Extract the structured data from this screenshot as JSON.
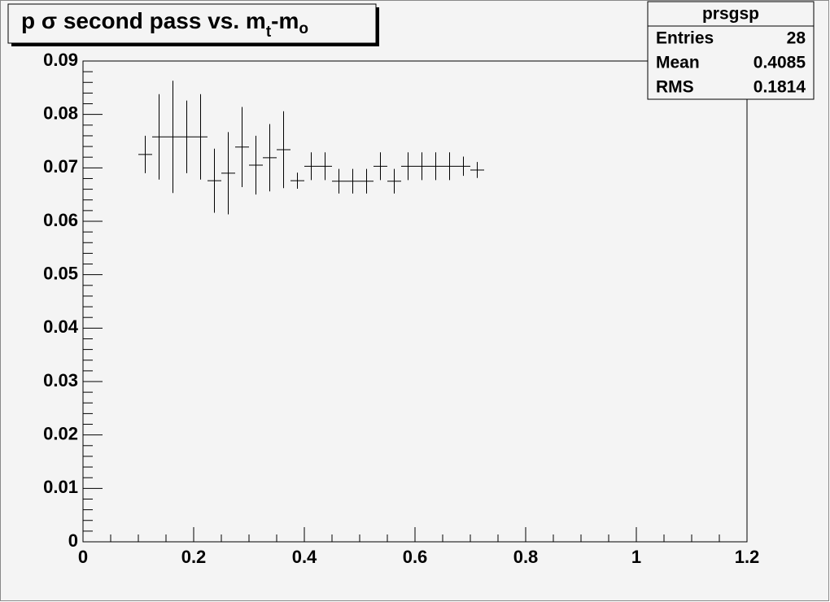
{
  "chart_data": {
    "type": "profile",
    "title": [
      "p σ second pass vs. m",
      "t",
      "-m",
      "o"
    ],
    "x": [
      0.1125,
      0.1375,
      0.1625,
      0.1875,
      0.2125,
      0.2375,
      0.2625,
      0.2875,
      0.3125,
      0.3375,
      0.3625,
      0.3875,
      0.4125,
      0.4375,
      0.4625,
      0.4875,
      0.5125,
      0.5375,
      0.5625,
      0.5875,
      0.6125,
      0.6375,
      0.6625,
      0.6875,
      0.7125
    ],
    "values": [
      0.0725,
      0.0758,
      0.0758,
      0.0758,
      0.0758,
      0.0676,
      0.069,
      0.0739,
      0.0705,
      0.0719,
      0.0734,
      0.0676,
      0.0703,
      0.0703,
      0.0675,
      0.0675,
      0.0675,
      0.0703,
      0.0675,
      0.0703,
      0.0703,
      0.0703,
      0.0703,
      0.0703,
      0.0696
    ],
    "errors": [
      0.0035,
      0.008,
      0.0105,
      0.0068,
      0.008,
      0.006,
      0.0077,
      0.0075,
      0.0055,
      0.0063,
      0.0072,
      0.0015,
      0.0026,
      0.0026,
      0.0023,
      0.0023,
      0.0023,
      0.0026,
      0.0023,
      0.0026,
      0.0026,
      0.0026,
      0.0026,
      0.0018,
      0.0015
    ],
    "color": "#000000",
    "xlim": [
      0,
      1.2
    ],
    "ylim": [
      0,
      0.09
    ],
    "xticks": [
      0,
      0.2,
      0.4,
      0.6,
      0.8,
      1,
      1.2
    ],
    "yticks": [
      0,
      0.01,
      0.02,
      0.03,
      0.04,
      0.05,
      0.06,
      0.07,
      0.08,
      0.09
    ],
    "stats": {
      "name": "prsgsp",
      "labels": [
        "Entries",
        "Mean",
        "RMS"
      ],
      "values": [
        28,
        0.4085,
        0.1814
      ]
    }
  }
}
